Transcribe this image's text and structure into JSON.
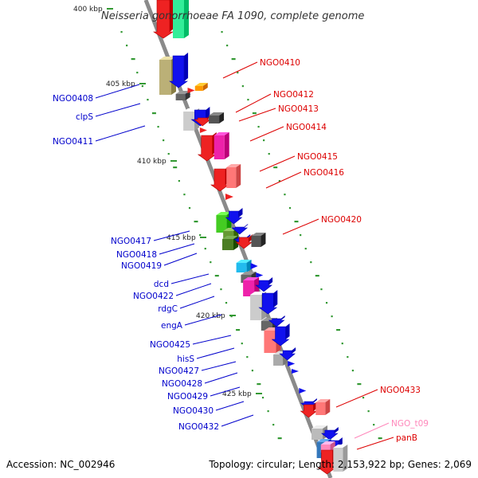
{
  "title": "Neisseria gonorrhoeae FA 1090, complete genome",
  "footer": {
    "accession": "Accession: NC_002946",
    "topology": "Topology: circular; Length: 2,153,922 bp; Genes: 2,069"
  },
  "scale_ticks": [
    "400 kbp",
    "405 kbp",
    "410 kbp",
    "415 kbp",
    "420 kbp",
    "425 kbp"
  ],
  "colors": {
    "backbone": "#8a8a8a",
    "left_label": "#0000cc",
    "right_label": "#dd0000",
    "rna_label": "#ff88bb",
    "dot_track": "#339933"
  },
  "left_labels": [
    "NGO0408",
    "clpS",
    "NGO0411",
    "NGO0417",
    "NGO0418",
    "NGO0419",
    "dcd",
    "NGO0422",
    "rdgC",
    "engA",
    "NGO0425",
    "hisS",
    "NGO0427",
    "NGO0428",
    "NGO0429",
    "NGO0430",
    "NGO0432"
  ],
  "right_labels": [
    "NGO0410",
    "NGO0412",
    "NGO0413",
    "NGO0414",
    "NGO0415",
    "NGO0416",
    "NGO0420",
    "NGO0433",
    "NGO_t09",
    "panB"
  ]
}
